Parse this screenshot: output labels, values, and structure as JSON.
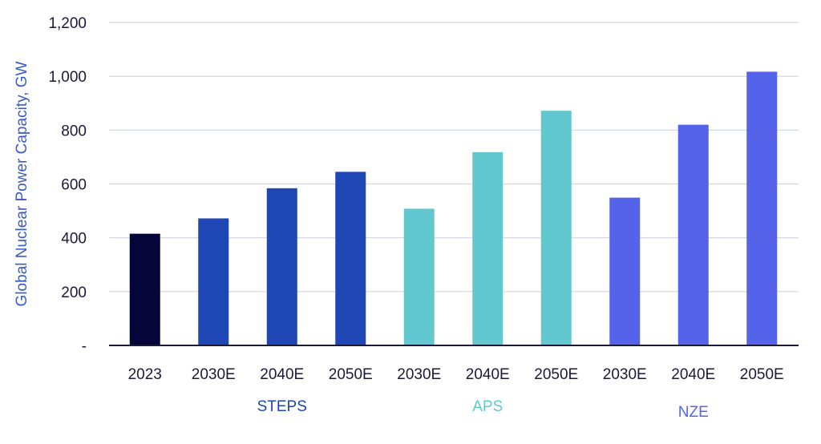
{
  "chart_data": {
    "type": "bar",
    "ylabel": "Global Nuclear Power Capacity, GW",
    "ylim": [
      0,
      1200
    ],
    "y_ticks": [
      0,
      200,
      400,
      600,
      800,
      1000,
      1200
    ],
    "y_tick_labels": [
      "-",
      "200",
      "400",
      "600",
      "800",
      "1,000",
      "1,200"
    ],
    "grid": true,
    "categories": [
      "2023",
      "2030E",
      "2040E",
      "2050E",
      "2030E",
      "2040E",
      "2050E",
      "2030E",
      "2040E",
      "2050E"
    ],
    "values": [
      415,
      472,
      584,
      645,
      508,
      718,
      872,
      549,
      820,
      1017
    ],
    "bar_colors": [
      "#05053a",
      "#1e46b5",
      "#1e46b5",
      "#1e46b5",
      "#62c8cf",
      "#62c8cf",
      "#62c8cf",
      "#5563ea",
      "#5563ea",
      "#5563ea"
    ],
    "groups": [
      {
        "label": "STEPS",
        "color": "#1e46b5",
        "start": 1,
        "end": 3
      },
      {
        "label": "APS",
        "color": "#62c8cf",
        "start": 4,
        "end": 6
      },
      {
        "label": "NZE",
        "color": "#5563ea",
        "start": 7,
        "end": 9
      }
    ]
  }
}
